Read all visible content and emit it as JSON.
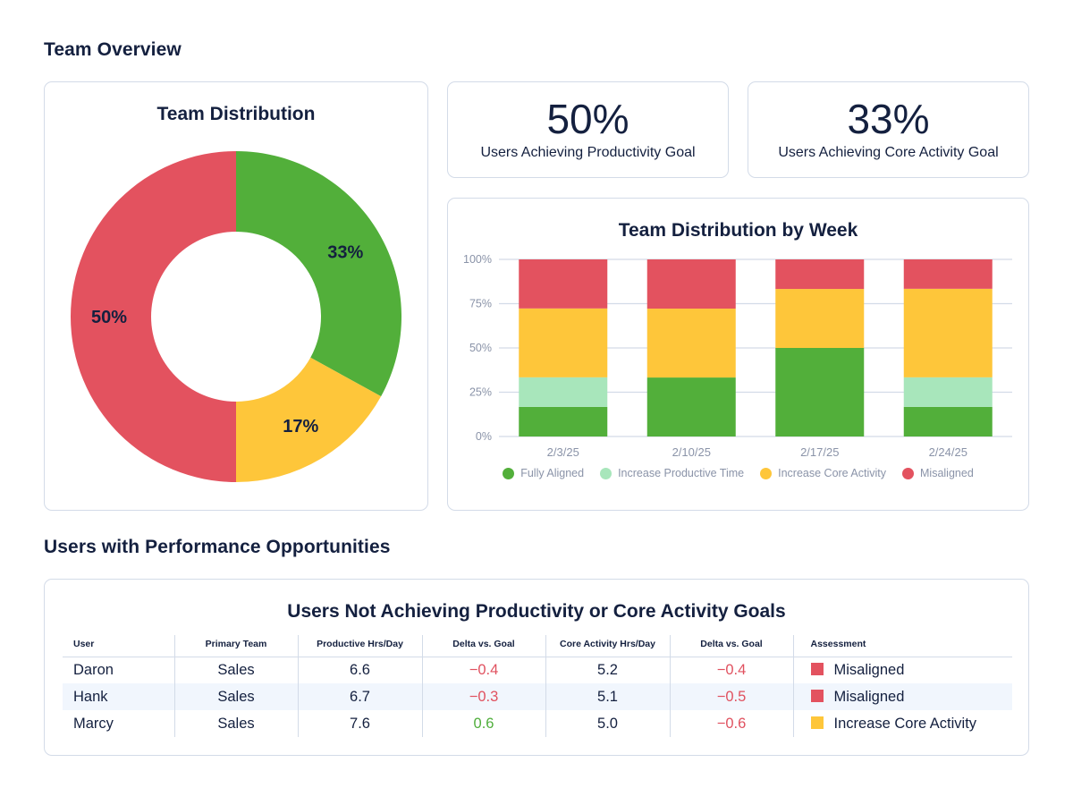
{
  "sections": {
    "overview_title": "Team Overview",
    "opportunities_title": "Users with Performance Opportunities"
  },
  "colors": {
    "fully_aligned": "#52af3a",
    "increase_productive_time": "#a8e6bb",
    "increase_core_activity": "#fec63a",
    "misaligned": "#e3525f",
    "text": "#14203f",
    "grid": "#d3dbe8",
    "axis_text": "#8a93a8"
  },
  "kpis": [
    {
      "value": "50%",
      "label": "Users Achieving Productivity Goal"
    },
    {
      "value": "33%",
      "label": "Users Achieving Core Activity Goal"
    }
  ],
  "chart_data": [
    {
      "type": "pie",
      "title": "Team Distribution",
      "donut": true,
      "slices": [
        {
          "name": "Fully Aligned",
          "value": 33,
          "label": "33%",
          "color": "#52af3a"
        },
        {
          "name": "Increase Core Activity",
          "value": 17,
          "label": "17%",
          "color": "#fec63a"
        },
        {
          "name": "Misaligned",
          "value": 50,
          "label": "50%",
          "color": "#e3525f"
        }
      ]
    },
    {
      "type": "bar",
      "stacked": true,
      "title": "Team Distribution by Week",
      "categories": [
        "2/3/25",
        "2/10/25",
        "2/17/25",
        "2/24/25"
      ],
      "series": [
        {
          "name": "Fully Aligned",
          "color": "#52af3a",
          "values": [
            16.7,
            33.3,
            50,
            16.7
          ]
        },
        {
          "name": "Increase Productive Time",
          "color": "#a8e6bb",
          "values": [
            16.7,
            0,
            0,
            16.7
          ]
        },
        {
          "name": "Increase Core Activity",
          "color": "#fec63a",
          "values": [
            38.9,
            38.9,
            33.3,
            50
          ]
        },
        {
          "name": "Misaligned",
          "color": "#e3525f",
          "values": [
            27.7,
            27.8,
            16.7,
            16.6
          ]
        }
      ],
      "ylim": [
        0,
        100
      ],
      "yticks": [
        "0%",
        "25%",
        "50%",
        "75%",
        "100%"
      ],
      "ytick_values": [
        0,
        25,
        50,
        75,
        100
      ],
      "grid": true,
      "legend_position": "bottom",
      "xlabel": "",
      "ylabel": ""
    }
  ],
  "table": {
    "title": "Users Not Achieving Productivity or Core Activity Goals",
    "columns": [
      "User",
      "Primary Team",
      "Productive Hrs/Day",
      "Delta vs. Goal",
      "Core Activity Hrs/Day",
      "Delta vs. Goal",
      "Assessment"
    ],
    "rows": [
      {
        "user": "Daron",
        "team": "Sales",
        "prod": "6.6",
        "prod_delta": "−0.4",
        "core": "5.2",
        "core_delta": "−0.4",
        "assessment": "Misaligned"
      },
      {
        "user": "Hank",
        "team": "Sales",
        "prod": "6.7",
        "prod_delta": "−0.3",
        "core": "5.1",
        "core_delta": "−0.5",
        "assessment": "Misaligned"
      },
      {
        "user": "Marcy",
        "team": "Sales",
        "prod": "7.6",
        "prod_delta": "0.6",
        "core": "5.0",
        "core_delta": "−0.6",
        "assessment": "Increase Core Activity"
      }
    ]
  }
}
